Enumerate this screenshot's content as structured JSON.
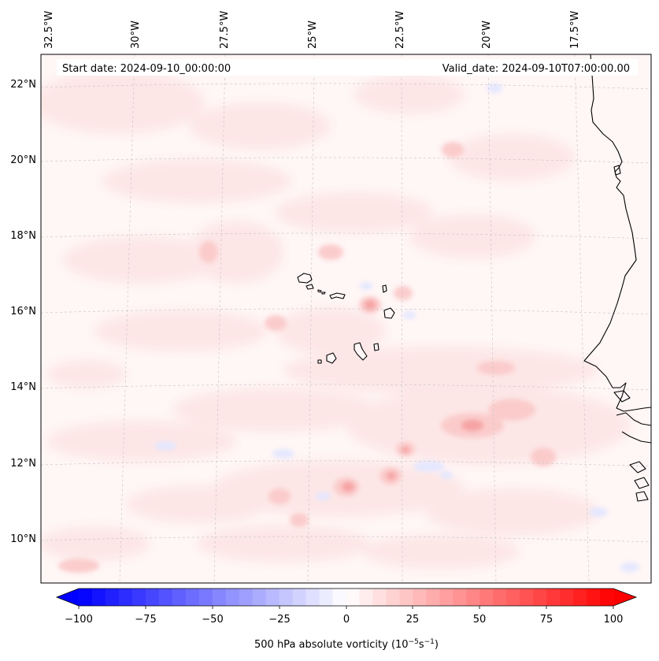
{
  "map": {
    "start_label": "Start date: 2024-09-10_00:00:00",
    "valid_label": "Valid_date: 2024-09-10T07:00:00.00",
    "lon_labels": [
      "32.5°W",
      "30°W",
      "27.5°W",
      "25°W",
      "22.5°W",
      "20°W",
      "17.5°W"
    ],
    "lat_labels": [
      "22°N",
      "20°N",
      "18°N",
      "16°N",
      "14°N",
      "12°N",
      "10°N"
    ],
    "colorbar": {
      "label_main": "500 hPa absolute vorticity (10",
      "label_exp1": "−5",
      "label_unit": "s",
      "label_exp2": "−1",
      "label_close": ")",
      "ticks": [
        "−100",
        "−75",
        "−50",
        "−25",
        "0",
        "25",
        "50",
        "75",
        "100"
      ],
      "tick_values": [
        -100,
        -75,
        -50,
        -25,
        0,
        25,
        50,
        75,
        100
      ],
      "min": -100,
      "max": 100,
      "colormap": "bwr"
    },
    "colors": {
      "field_base": "#fff6f6",
      "light_red": "#fde4e4",
      "mid_red": "#fbc9c9",
      "strong_red": "#f7a9a9",
      "light_blue": "#eef0ff",
      "coast": "#000000",
      "grid": "#bbbbbb"
    }
  }
}
